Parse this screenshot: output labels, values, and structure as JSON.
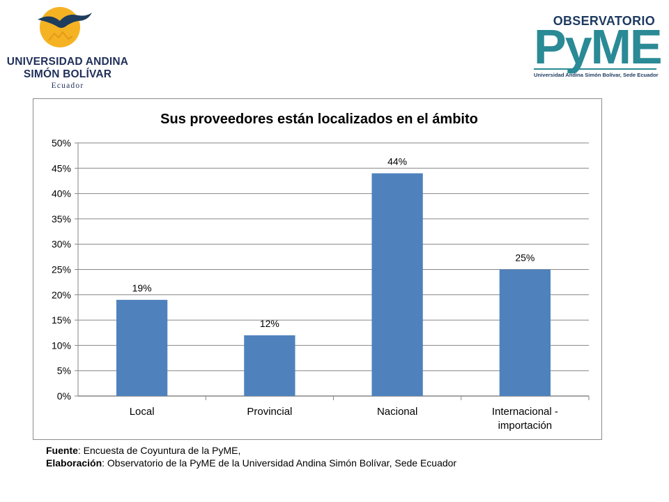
{
  "header": {
    "university": {
      "line1": "UNIVERSIDAD ANDINA",
      "line2": "SIMÓN BOLÍVAR",
      "line3": "Ecuador",
      "logo_icon": "condor-sun-emblem"
    },
    "observatory": {
      "title": "OBSERVATORIO",
      "brand": "PyME",
      "subtitle": "Universidad Andina Simón Bolívar, Sede Ecuador"
    }
  },
  "colors": {
    "bar": "#4f81bd",
    "grid": "#868686",
    "text": "#000000",
    "pyme_teal": "#2a8a95",
    "navy": "#1d3a5f",
    "sun": "#f5b324"
  },
  "chart_data": {
    "type": "bar",
    "title": "Sus proveedores están localizados en el ámbito",
    "categories": [
      [
        "Local"
      ],
      [
        "Provincial"
      ],
      [
        "Nacional"
      ],
      [
        "Internacional -",
        "importación"
      ]
    ],
    "values": [
      19,
      12,
      44,
      25
    ],
    "data_labels": [
      "19%",
      "12%",
      "44%",
      "25%"
    ],
    "yticks": [
      "0%",
      "5%",
      "10%",
      "15%",
      "20%",
      "25%",
      "30%",
      "35%",
      "40%",
      "45%",
      "50%"
    ],
    "ylim": [
      0,
      50
    ],
    "grid": true,
    "legend": "none",
    "xlabel": "",
    "ylabel": ""
  },
  "footer": {
    "source_label": "Fuente",
    "source_text": ": Encuesta de Coyuntura de la PyME,",
    "prepared_label": "Elaboración",
    "prepared_text": ": Observatorio de la PyME de la Universidad Andina Simón Bolívar, Sede Ecuador"
  }
}
